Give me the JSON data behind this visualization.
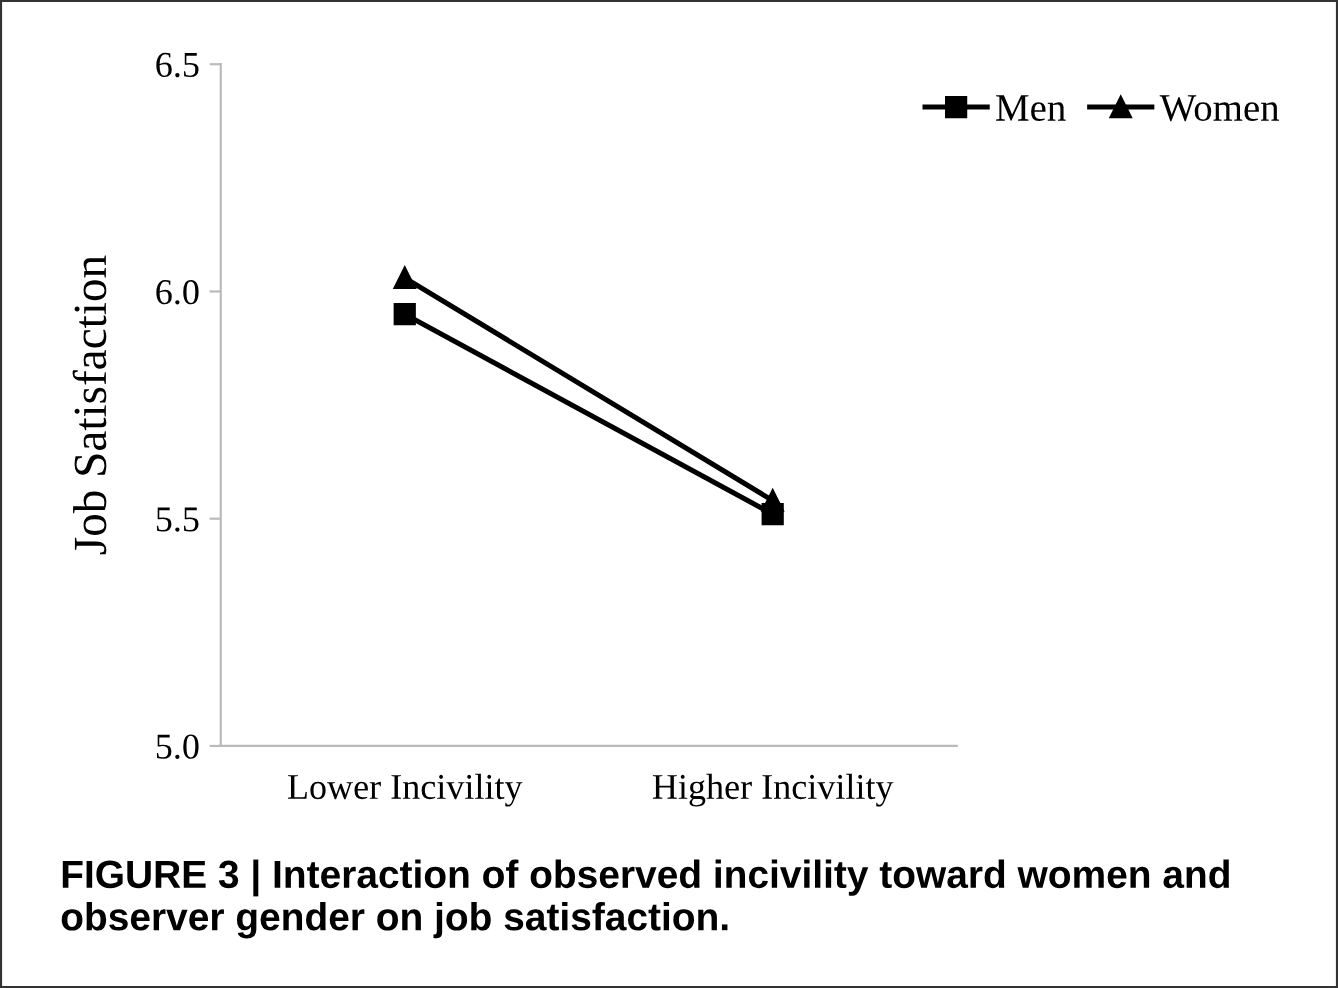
{
  "chart_data": {
    "type": "line",
    "ylabel": "Job Satisfaction",
    "categories": [
      "Lower Incivility",
      "Higher Incivility"
    ],
    "series": [
      {
        "name": "Men",
        "color": "#000000",
        "marker": "square",
        "values": [
          5.95,
          5.51
        ]
      },
      {
        "name": "Women",
        "color": "#000000",
        "marker": "triangle",
        "values": [
          6.03,
          5.54
        ]
      }
    ],
    "ylim": [
      5.0,
      6.5
    ],
    "yticks": [
      {
        "value": 5.0,
        "label": "5.0"
      },
      {
        "value": 5.5,
        "label": "5.5"
      },
      {
        "value": 6.0,
        "label": "6.0"
      },
      {
        "value": 6.5,
        "label": "6.5"
      }
    ],
    "grid": false,
    "legend": "top right",
    "line_style": "solid",
    "annotations": [
      "FIGURE 3 | Interaction of observed incivility toward women and observer gender on job satisfaction."
    ]
  }
}
